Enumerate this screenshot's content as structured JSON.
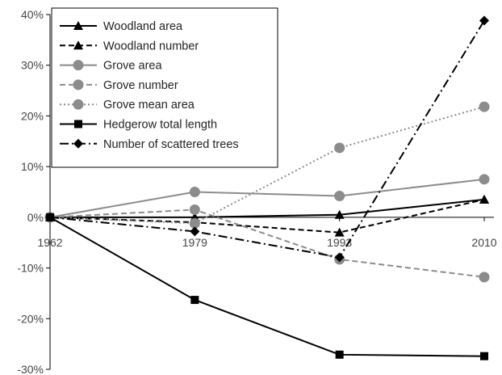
{
  "chart_data": {
    "type": "line",
    "x": [
      "1962",
      "1979",
      "1993",
      "2010"
    ],
    "y_ticks": [
      "40%",
      "30%",
      "20%",
      "10%",
      "0%",
      "-10%",
      "-20%",
      "-30%"
    ],
    "ylim": [
      -30,
      40
    ],
    "y_unit": "percent",
    "grid": false,
    "legend_position": "top-left",
    "series": [
      {
        "name": "Woodland area",
        "values": [
          0,
          0,
          0.5,
          3.5
        ],
        "color": "#000000",
        "dash": "solid",
        "marker": "triangle"
      },
      {
        "name": "Woodland number",
        "values": [
          0,
          -1,
          -3,
          3.5
        ],
        "color": "#000000",
        "dash": "dashed",
        "marker": "triangle"
      },
      {
        "name": "Grove area",
        "values": [
          0,
          5,
          4.2,
          7.5
        ],
        "color": "#8c8c8c",
        "dash": "solid",
        "marker": "circle"
      },
      {
        "name": "Grove number",
        "values": [
          0,
          1.5,
          -8.3,
          -11.8
        ],
        "color": "#8c8c8c",
        "dash": "dashed",
        "marker": "circle"
      },
      {
        "name": "Grove mean area",
        "values": [
          0,
          -1.2,
          13.7,
          21.8
        ],
        "color": "#8c8c8c",
        "dash": "dotted",
        "marker": "circle"
      },
      {
        "name": "Hedgerow total length",
        "values": [
          0,
          -16.3,
          -27.1,
          -27.4
        ],
        "color": "#000000",
        "dash": "solid",
        "marker": "square"
      },
      {
        "name": "Number of scattered trees",
        "values": [
          0,
          -2.8,
          -7.9,
          38.8
        ],
        "color": "#000000",
        "dash": "dashdot",
        "marker": "diamond"
      }
    ]
  }
}
